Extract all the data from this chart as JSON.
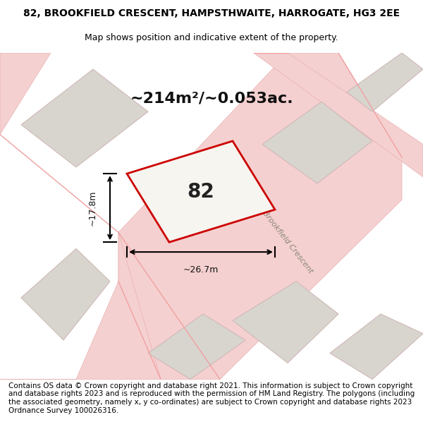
{
  "title_line1": "82, BROOKFIELD CRESCENT, HAMPSTHWAITE, HARROGATE, HG3 2EE",
  "title_line2": "Map shows position and indicative extent of the property.",
  "area_text": "~214m²/~0.053ac.",
  "label_number": "82",
  "dim_width": "~26.7m",
  "dim_height": "~17.8m",
  "footer": "Contains OS data © Crown copyright and database right 2021. This information is subject to Crown copyright and database rights 2023 and is reproduced with the permission of HM Land Registry. The polygons (including the associated geometry, namely x, y co-ordinates) are subject to Crown copyright and database rights 2023 Ordnance Survey 100026316.",
  "bg_color": "#f0eeea",
  "map_bg": "#f0eeea",
  "road_color": "#f5c8c8",
  "road_outline": "#f0b0b0",
  "plot_color": "#f0eeea",
  "plot_outline": "#cc0000",
  "other_plot_color": "#d8d5cf",
  "other_plot_outline": "#f5c0c0",
  "street_label": "Brookfield Crescent",
  "footer_fontsize": 7.5,
  "title_fontsize": 10,
  "subtitle_fontsize": 9
}
